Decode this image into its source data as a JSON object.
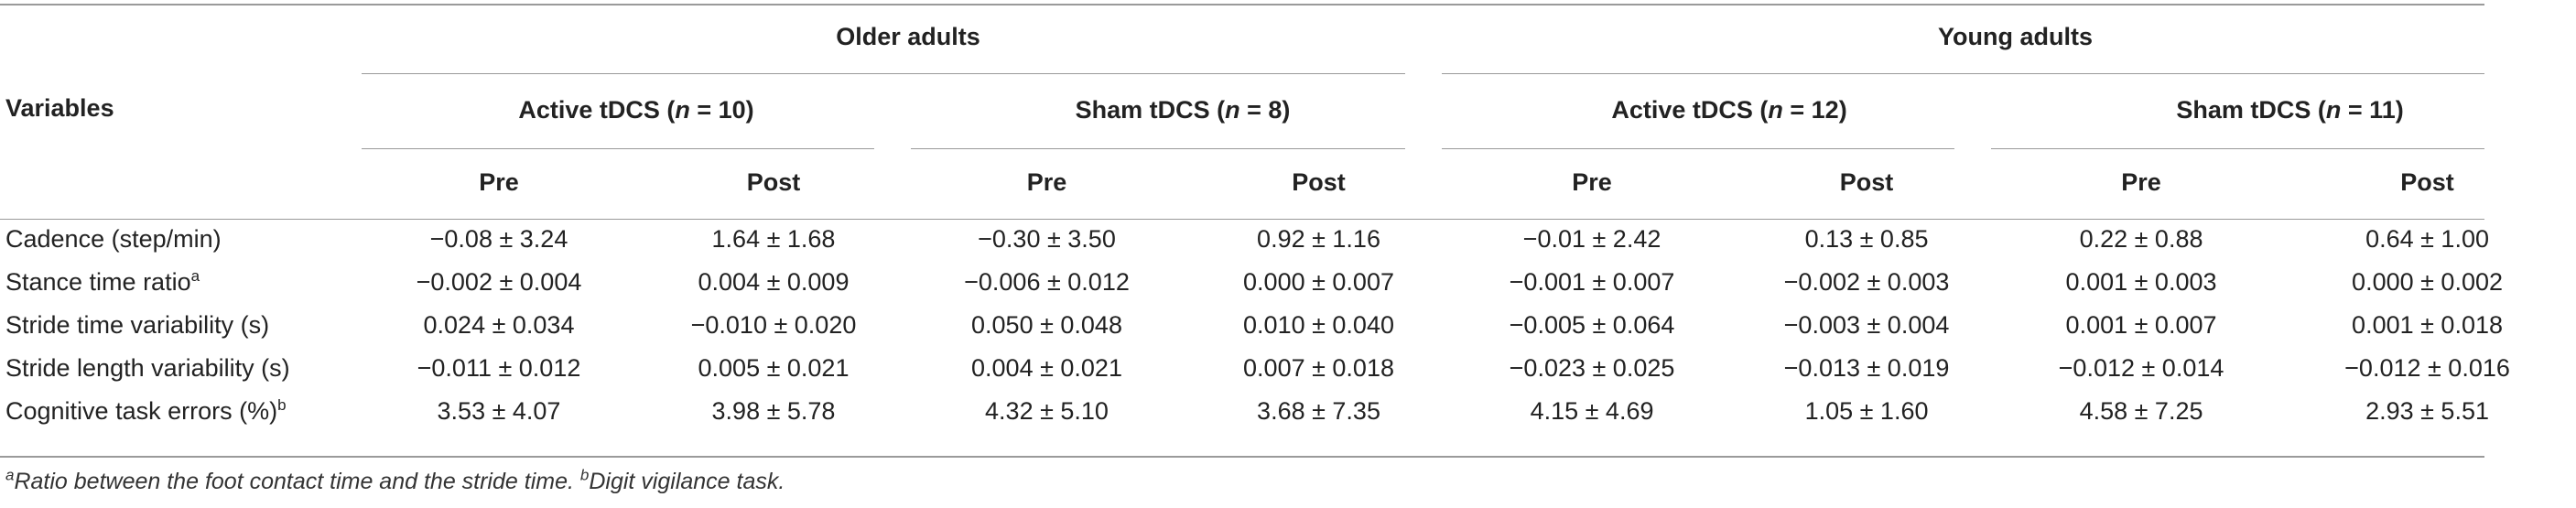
{
  "header": {
    "variables_label": "Variables",
    "groups": [
      {
        "label": "Older adults"
      },
      {
        "label": "Young adults"
      }
    ],
    "conditions": [
      {
        "prefix": "Active tDCS (",
        "n_symbol": "n",
        "suffix": " = 10)"
      },
      {
        "prefix": "Sham tDCS (",
        "n_symbol": "n",
        "suffix": " = 8)"
      },
      {
        "prefix": "Active tDCS (",
        "n_symbol": "n",
        "suffix": " = 12)"
      },
      {
        "prefix": "Sham tDCS (",
        "n_symbol": "n",
        "suffix": " = 11)"
      }
    ],
    "timepoints": [
      "Pre",
      "Post",
      "Pre",
      "Post",
      "Pre",
      "Post",
      "Pre",
      "Post"
    ]
  },
  "rows": [
    {
      "label": "Cadence (step/min)",
      "sup": "",
      "values": [
        "−0.08 ± 3.24",
        "1.64 ± 1.68",
        "−0.30 ± 3.50",
        "0.92 ± 1.16",
        "−0.01 ± 2.42",
        "0.13 ± 0.85",
        "0.22 ± 0.88",
        "0.64 ± 1.00"
      ]
    },
    {
      "label": "Stance time ratio",
      "sup": "a",
      "values": [
        "−0.002 ± 0.004",
        "0.004 ± 0.009",
        "−0.006 ± 0.012",
        "0.000 ± 0.007",
        "−0.001 ± 0.007",
        "−0.002 ± 0.003",
        "0.001 ± 0.003",
        "0.000 ± 0.002"
      ]
    },
    {
      "label": "Stride time variability (s)",
      "sup": "",
      "values": [
        "0.024 ± 0.034",
        "−0.010 ± 0.020",
        "0.050 ± 0.048",
        "0.010 ± 0.040",
        "−0.005 ± 0.064",
        "−0.003 ± 0.004",
        "0.001 ± 0.007",
        "0.001 ± 0.018"
      ]
    },
    {
      "label": "Stride length variability (s)",
      "sup": "",
      "values": [
        "−0.011 ± 0.012",
        "0.005 ± 0.021",
        "0.004 ± 0.021",
        "0.007 ± 0.018",
        "−0.023 ± 0.025",
        "−0.013 ± 0.019",
        "−0.012 ± 0.014",
        "−0.012 ± 0.016"
      ]
    },
    {
      "label": "Cognitive task errors (%)",
      "sup": "b",
      "values": [
        "3.53 ± 4.07",
        "3.98 ± 5.78",
        "4.32 ± 5.10",
        "3.68 ± 7.35",
        "4.15 ± 4.69",
        "1.05 ± 1.60",
        "4.58 ± 7.25",
        "2.93 ± 5.51"
      ]
    }
  ],
  "footnote": {
    "a_mark": "a",
    "a_text": "Ratio between the foot contact time and the stride time. ",
    "b_mark": "b",
    "b_text": "Digit vigilance task."
  }
}
